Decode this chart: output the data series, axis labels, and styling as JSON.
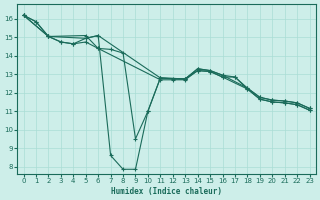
{
  "xlabel": "Humidex (Indice chaleur)",
  "background_color": "#cdeee9",
  "grid_color": "#aaddd5",
  "line_color": "#1a6b5a",
  "xlim": [
    -0.5,
    23.5
  ],
  "ylim": [
    7.6,
    16.8
  ],
  "yticks": [
    8,
    9,
    10,
    11,
    12,
    13,
    14,
    15,
    16
  ],
  "xticks": [
    0,
    1,
    2,
    3,
    4,
    5,
    6,
    7,
    8,
    9,
    10,
    11,
    12,
    13,
    14,
    15,
    16,
    17,
    18,
    19,
    20,
    21,
    22,
    23
  ],
  "series": [
    {
      "x": [
        0,
        1,
        2,
        3,
        4,
        5,
        6,
        11,
        12,
        13,
        14,
        15,
        16,
        17,
        18,
        19,
        20,
        21,
        22,
        23
      ],
      "y": [
        16.2,
        15.85,
        15.05,
        14.75,
        14.65,
        14.95,
        15.1,
        12.8,
        12.75,
        12.75,
        13.3,
        13.2,
        12.95,
        12.85,
        12.25,
        11.75,
        11.6,
        11.55,
        11.45,
        11.15
      ]
    },
    {
      "x": [
        0,
        1,
        2,
        3,
        4,
        5,
        6,
        11,
        12,
        13,
        14,
        15,
        16,
        17,
        18,
        19,
        20,
        21,
        22,
        23
      ],
      "y": [
        16.2,
        15.85,
        15.05,
        14.75,
        14.65,
        14.75,
        14.4,
        12.7,
        12.7,
        12.7,
        13.2,
        13.15,
        12.85,
        12.85,
        12.2,
        11.65,
        11.5,
        11.45,
        11.35,
        11.05
      ]
    },
    {
      "x": [
        0,
        2,
        5,
        6,
        7,
        8,
        9,
        10,
        11,
        13,
        14,
        15,
        16,
        18,
        19,
        20,
        21,
        22,
        23
      ],
      "y": [
        16.2,
        15.05,
        14.95,
        15.1,
        8.6,
        7.85,
        7.85,
        11.0,
        12.8,
        12.75,
        13.2,
        13.15,
        12.85,
        12.2,
        11.65,
        11.5,
        11.45,
        11.35,
        11.05
      ]
    },
    {
      "x": [
        0,
        2,
        5,
        6,
        7,
        8,
        9,
        10,
        11,
        13,
        14,
        15,
        16,
        18,
        19,
        20,
        21,
        22,
        23
      ],
      "y": [
        16.2,
        15.05,
        15.1,
        14.4,
        14.35,
        14.15,
        9.5,
        11.0,
        12.8,
        12.75,
        13.3,
        13.2,
        12.95,
        12.25,
        11.75,
        11.6,
        11.55,
        11.45,
        11.15
      ]
    }
  ]
}
